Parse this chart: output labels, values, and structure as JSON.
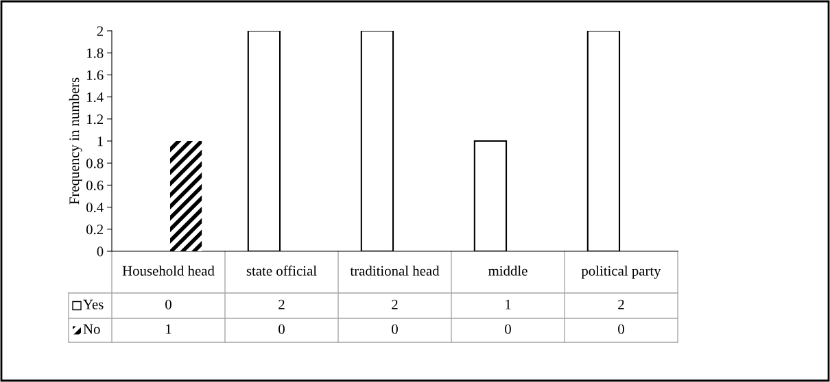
{
  "chart_data": {
    "type": "bar",
    "ylabel": "Frequency in numbers",
    "categories": [
      "Household head",
      "state official",
      "traditional head",
      "middle",
      "political party"
    ],
    "series": [
      {
        "name": "Yes",
        "color": "#ffffff",
        "values": [
          0,
          2,
          2,
          1,
          2
        ]
      },
      {
        "name": "No",
        "color": "#000000",
        "values": [
          1,
          0,
          0,
          0,
          0
        ]
      }
    ],
    "ylim": [
      0,
      2
    ],
    "yticks": [
      0,
      0.2,
      0.4,
      0.6,
      0.8,
      1,
      1.2,
      1.4,
      1.6,
      1.8,
      2
    ],
    "grid": false,
    "legend": "bottom left",
    "data_labels": true
  }
}
